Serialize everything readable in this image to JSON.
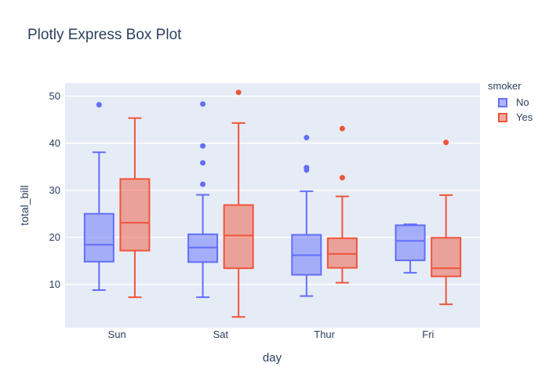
{
  "chart_data": {
    "type": "box",
    "title": "Plotly Express Box Plot",
    "xlabel": "day",
    "ylabel": "total_bill",
    "categories": [
      "Sun",
      "Sat",
      "Thur",
      "Fri"
    ],
    "yticks": [
      10,
      20,
      30,
      40,
      50
    ],
    "ylim": [
      0.78,
      52.78
    ],
    "grid": true,
    "plot_bgcolor": "#E5ECF6",
    "grid_color": "#FFFFFF",
    "font_color": "#2a3f5f",
    "legend": {
      "title": "smoker",
      "position": "right"
    },
    "series": [
      {
        "name": "No",
        "color": "#636EFA",
        "boxes": [
          {
            "category": "Sun",
            "lower_fence": 8.77,
            "q1": 14.82,
            "median": 18.43,
            "q3": 25.0,
            "upper_fence": 38.07,
            "outliers": [
              48.17
            ]
          },
          {
            "category": "Sat",
            "lower_fence": 7.25,
            "q1": 14.73,
            "median": 17.82,
            "q3": 20.65,
            "upper_fence": 29.03,
            "outliers": [
              31.27,
              35.83,
              39.42,
              48.33
            ]
          },
          {
            "category": "Thur",
            "lower_fence": 7.51,
            "q1": 12.03,
            "median": 16.2,
            "q3": 20.53,
            "upper_fence": 29.8,
            "outliers": [
              34.3,
              34.83,
              41.19
            ]
          },
          {
            "category": "Fri",
            "lower_fence": 12.46,
            "q1": 15.1,
            "median": 19.24,
            "q3": 22.56,
            "upper_fence": 22.75,
            "outliers": []
          }
        ]
      },
      {
        "name": "Yes",
        "color": "#EF553B",
        "boxes": [
          {
            "category": "Sun",
            "lower_fence": 7.25,
            "q1": 17.17,
            "median": 23.1,
            "q3": 32.4,
            "upper_fence": 45.35,
            "outliers": []
          },
          {
            "category": "Sat",
            "lower_fence": 3.07,
            "q1": 13.42,
            "median": 20.39,
            "q3": 26.86,
            "upper_fence": 44.3,
            "outliers": [
              50.81
            ]
          },
          {
            "category": "Thur",
            "lower_fence": 10.34,
            "q1": 13.51,
            "median": 16.47,
            "q3": 19.81,
            "upper_fence": 28.7,
            "outliers": [
              32.68,
              43.11
            ]
          },
          {
            "category": "Fri",
            "lower_fence": 5.75,
            "q1": 11.69,
            "median": 13.42,
            "q3": 19.9,
            "upper_fence": 28.97,
            "outliers": [
              40.17
            ]
          }
        ]
      }
    ]
  }
}
